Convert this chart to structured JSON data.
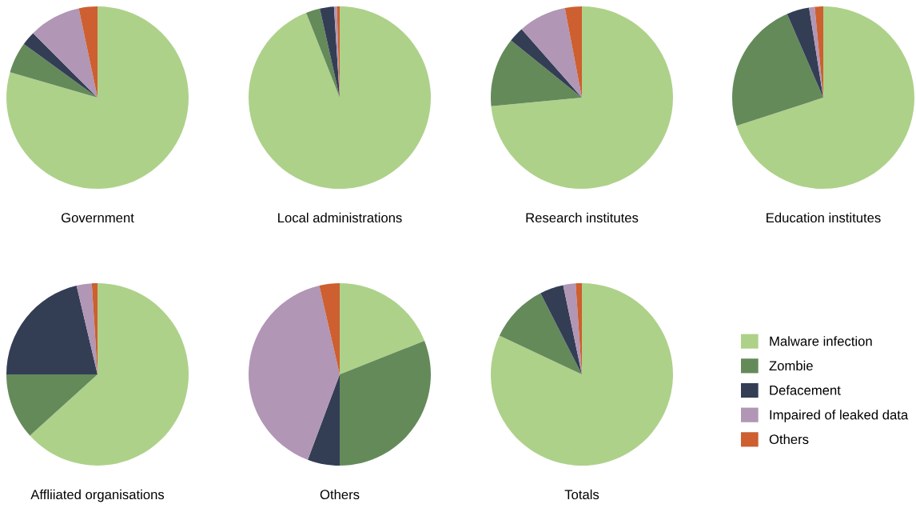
{
  "chart_data": [
    {
      "type": "pie",
      "title": "Government",
      "categories": [
        null,
        null,
        null,
        null,
        null
      ],
      "values": [
        79.5,
        5.5,
        2.5,
        9.2,
        3.3
      ],
      "colors": [
        "#aed18a",
        "#648a5a",
        "#333e55",
        "#b196b5",
        "#cd5f30"
      ]
    },
    {
      "type": "pie",
      "title": "Local administrations",
      "categories": [
        null,
        null,
        null,
        null,
        null
      ],
      "values": [
        94,
        2.5,
        2.5,
        0.5,
        0.5
      ],
      "colors": [
        "#aed18a",
        "#648a5a",
        "#333e55",
        "#b196b5",
        "#cd5f30"
      ]
    },
    {
      "type": "pie",
      "title": "Research institutes",
      "categories": [
        null,
        null,
        null,
        null,
        null
      ],
      "values": [
        73.5,
        12.3,
        2.7,
        8.5,
        3
      ],
      "colors": [
        "#aed18a",
        "#648a5a",
        "#333e55",
        "#b196b5",
        "#cd5f30"
      ]
    },
    {
      "type": "pie",
      "title": "Education institutes",
      "categories": [
        null,
        null,
        null,
        null,
        null
      ],
      "values": [
        70,
        23.5,
        4,
        1,
        1.5
      ],
      "colors": [
        "#aed18a",
        "#648a5a",
        "#333e55",
        "#b196b5",
        "#cd5f30"
      ]
    },
    {
      "type": "pie",
      "title": "Affliiated organisations",
      "categories": [
        null,
        null,
        null,
        null,
        null
      ],
      "values": [
        63.3,
        11.7,
        21.3,
        2.7,
        1
      ],
      "colors": [
        "#aed18a",
        "#648a5a",
        "#333e55",
        "#b196b5",
        "#cd5f30"
      ]
    },
    {
      "type": "pie",
      "title": "Others",
      "categories": [
        null,
        null,
        null,
        null,
        null
      ],
      "values": [
        19,
        31,
        5.7,
        40.7,
        3.6
      ],
      "colors": [
        "#aed18a",
        "#648a5a",
        "#333e55",
        "#b196b5",
        "#cd5f30"
      ]
    },
    {
      "type": "pie",
      "title": "Totals",
      "categories": [
        "Malware infection",
        "Zombie",
        "Defacement",
        "Impaired of leaked data",
        "Others"
      ],
      "values": [
        82,
        10.5,
        4.2,
        2.2,
        1.1
      ],
      "colors": [
        "#aed18a",
        "#648a5a",
        "#333e55",
        "#b196b5",
        "#cd5f30"
      ],
      "legend": "right"
    }
  ]
}
